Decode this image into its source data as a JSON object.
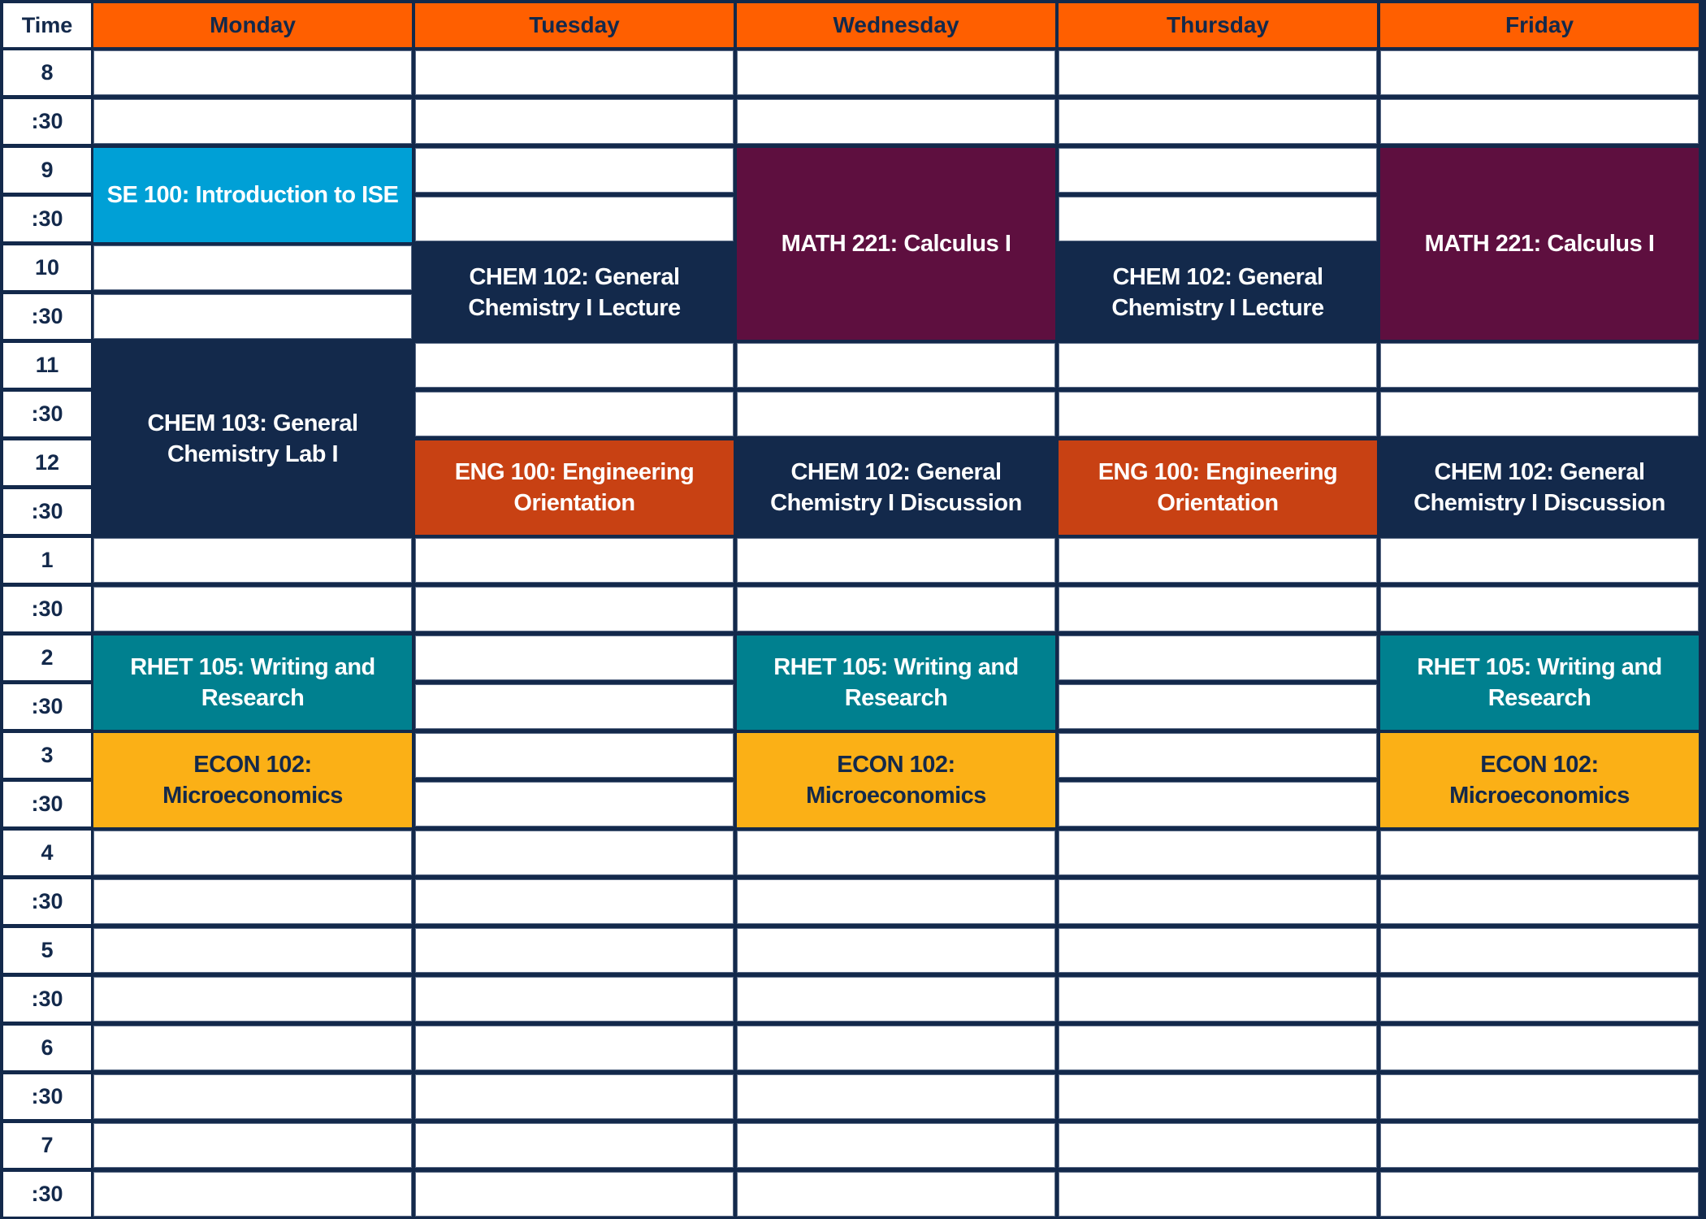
{
  "time_header": "Time",
  "days": [
    "Monday",
    "Tuesday",
    "Wednesday",
    "Thursday",
    "Friday"
  ],
  "times": [
    "8",
    ":30",
    "9",
    ":30",
    "10",
    ":30",
    "11",
    ":30",
    "12",
    ":30",
    "1",
    ":30",
    "2",
    ":30",
    "3",
    ":30",
    "4",
    ":30",
    "5",
    ":30",
    "6",
    ":30",
    "7",
    ":30"
  ],
  "colors": {
    "background": "#13294b",
    "header": "#ff5f00",
    "header_text": "#13294b",
    "se": "#00a0d6",
    "chem": "#13294b",
    "math": "#5e0f3f",
    "eng": "#c84113",
    "rhet": "#00808f",
    "econ": "#fbb016"
  },
  "events": [
    {
      "day": 0,
      "start": "9:00",
      "end": "10:00",
      "title": "SE 100: Introduction to ISE",
      "color": "se",
      "text": "#ffffff"
    },
    {
      "day": 0,
      "start": "11:00",
      "end": "1:00",
      "title": "CHEM 103: General Chemistry Lab I",
      "color": "chem",
      "text": "#ffffff"
    },
    {
      "day": 0,
      "start": "2:00",
      "end": "3:00",
      "title": "RHET 105: Writing and Research",
      "color": "rhet",
      "text": "#ffffff"
    },
    {
      "day": 0,
      "start": "3:00",
      "end": "4:00",
      "title": "ECON 102: Microeconomics",
      "color": "econ",
      "text": "#13294b"
    },
    {
      "day": 1,
      "start": "10:00",
      "end": "11:00",
      "title": "CHEM 102: General Chemistry I Lecture",
      "color": "chem",
      "text": "#ffffff"
    },
    {
      "day": 1,
      "start": "12:00",
      "end": "1:00",
      "title": "ENG 100: Engineering Orientation",
      "color": "eng",
      "text": "#ffffff"
    },
    {
      "day": 2,
      "start": "9:00",
      "end": "11:00",
      "title": "MATH 221: Calculus I",
      "color": "math",
      "text": "#ffffff"
    },
    {
      "day": 2,
      "start": "12:00",
      "end": "1:00",
      "title": "CHEM 102: General Chemistry I Discussion",
      "color": "chem",
      "text": "#ffffff"
    },
    {
      "day": 2,
      "start": "2:00",
      "end": "3:00",
      "title": "RHET 105: Writing and Research",
      "color": "rhet",
      "text": "#ffffff"
    },
    {
      "day": 2,
      "start": "3:00",
      "end": "4:00",
      "title": "ECON 102: Microeconomics",
      "color": "econ",
      "text": "#13294b"
    },
    {
      "day": 3,
      "start": "10:00",
      "end": "11:00",
      "title": "CHEM 102: General Chemistry I Lecture",
      "color": "chem",
      "text": "#ffffff"
    },
    {
      "day": 3,
      "start": "12:00",
      "end": "1:00",
      "title": "ENG 100: Engineering Orientation",
      "color": "eng",
      "text": "#ffffff"
    },
    {
      "day": 4,
      "start": "9:00",
      "end": "11:00",
      "title": "MATH 221: Calculus I",
      "color": "math",
      "text": "#ffffff"
    },
    {
      "day": 4,
      "start": "12:00",
      "end": "1:00",
      "title": "CHEM 102: General Chemistry I Discussion",
      "color": "chem",
      "text": "#ffffff"
    },
    {
      "day": 4,
      "start": "2:00",
      "end": "3:00",
      "title": "RHET 105: Writing and Research",
      "color": "rhet",
      "text": "#ffffff"
    },
    {
      "day": 4,
      "start": "3:00",
      "end": "4:00",
      "title": "ECON 102: Microeconomics",
      "color": "econ",
      "text": "#13294b"
    }
  ]
}
